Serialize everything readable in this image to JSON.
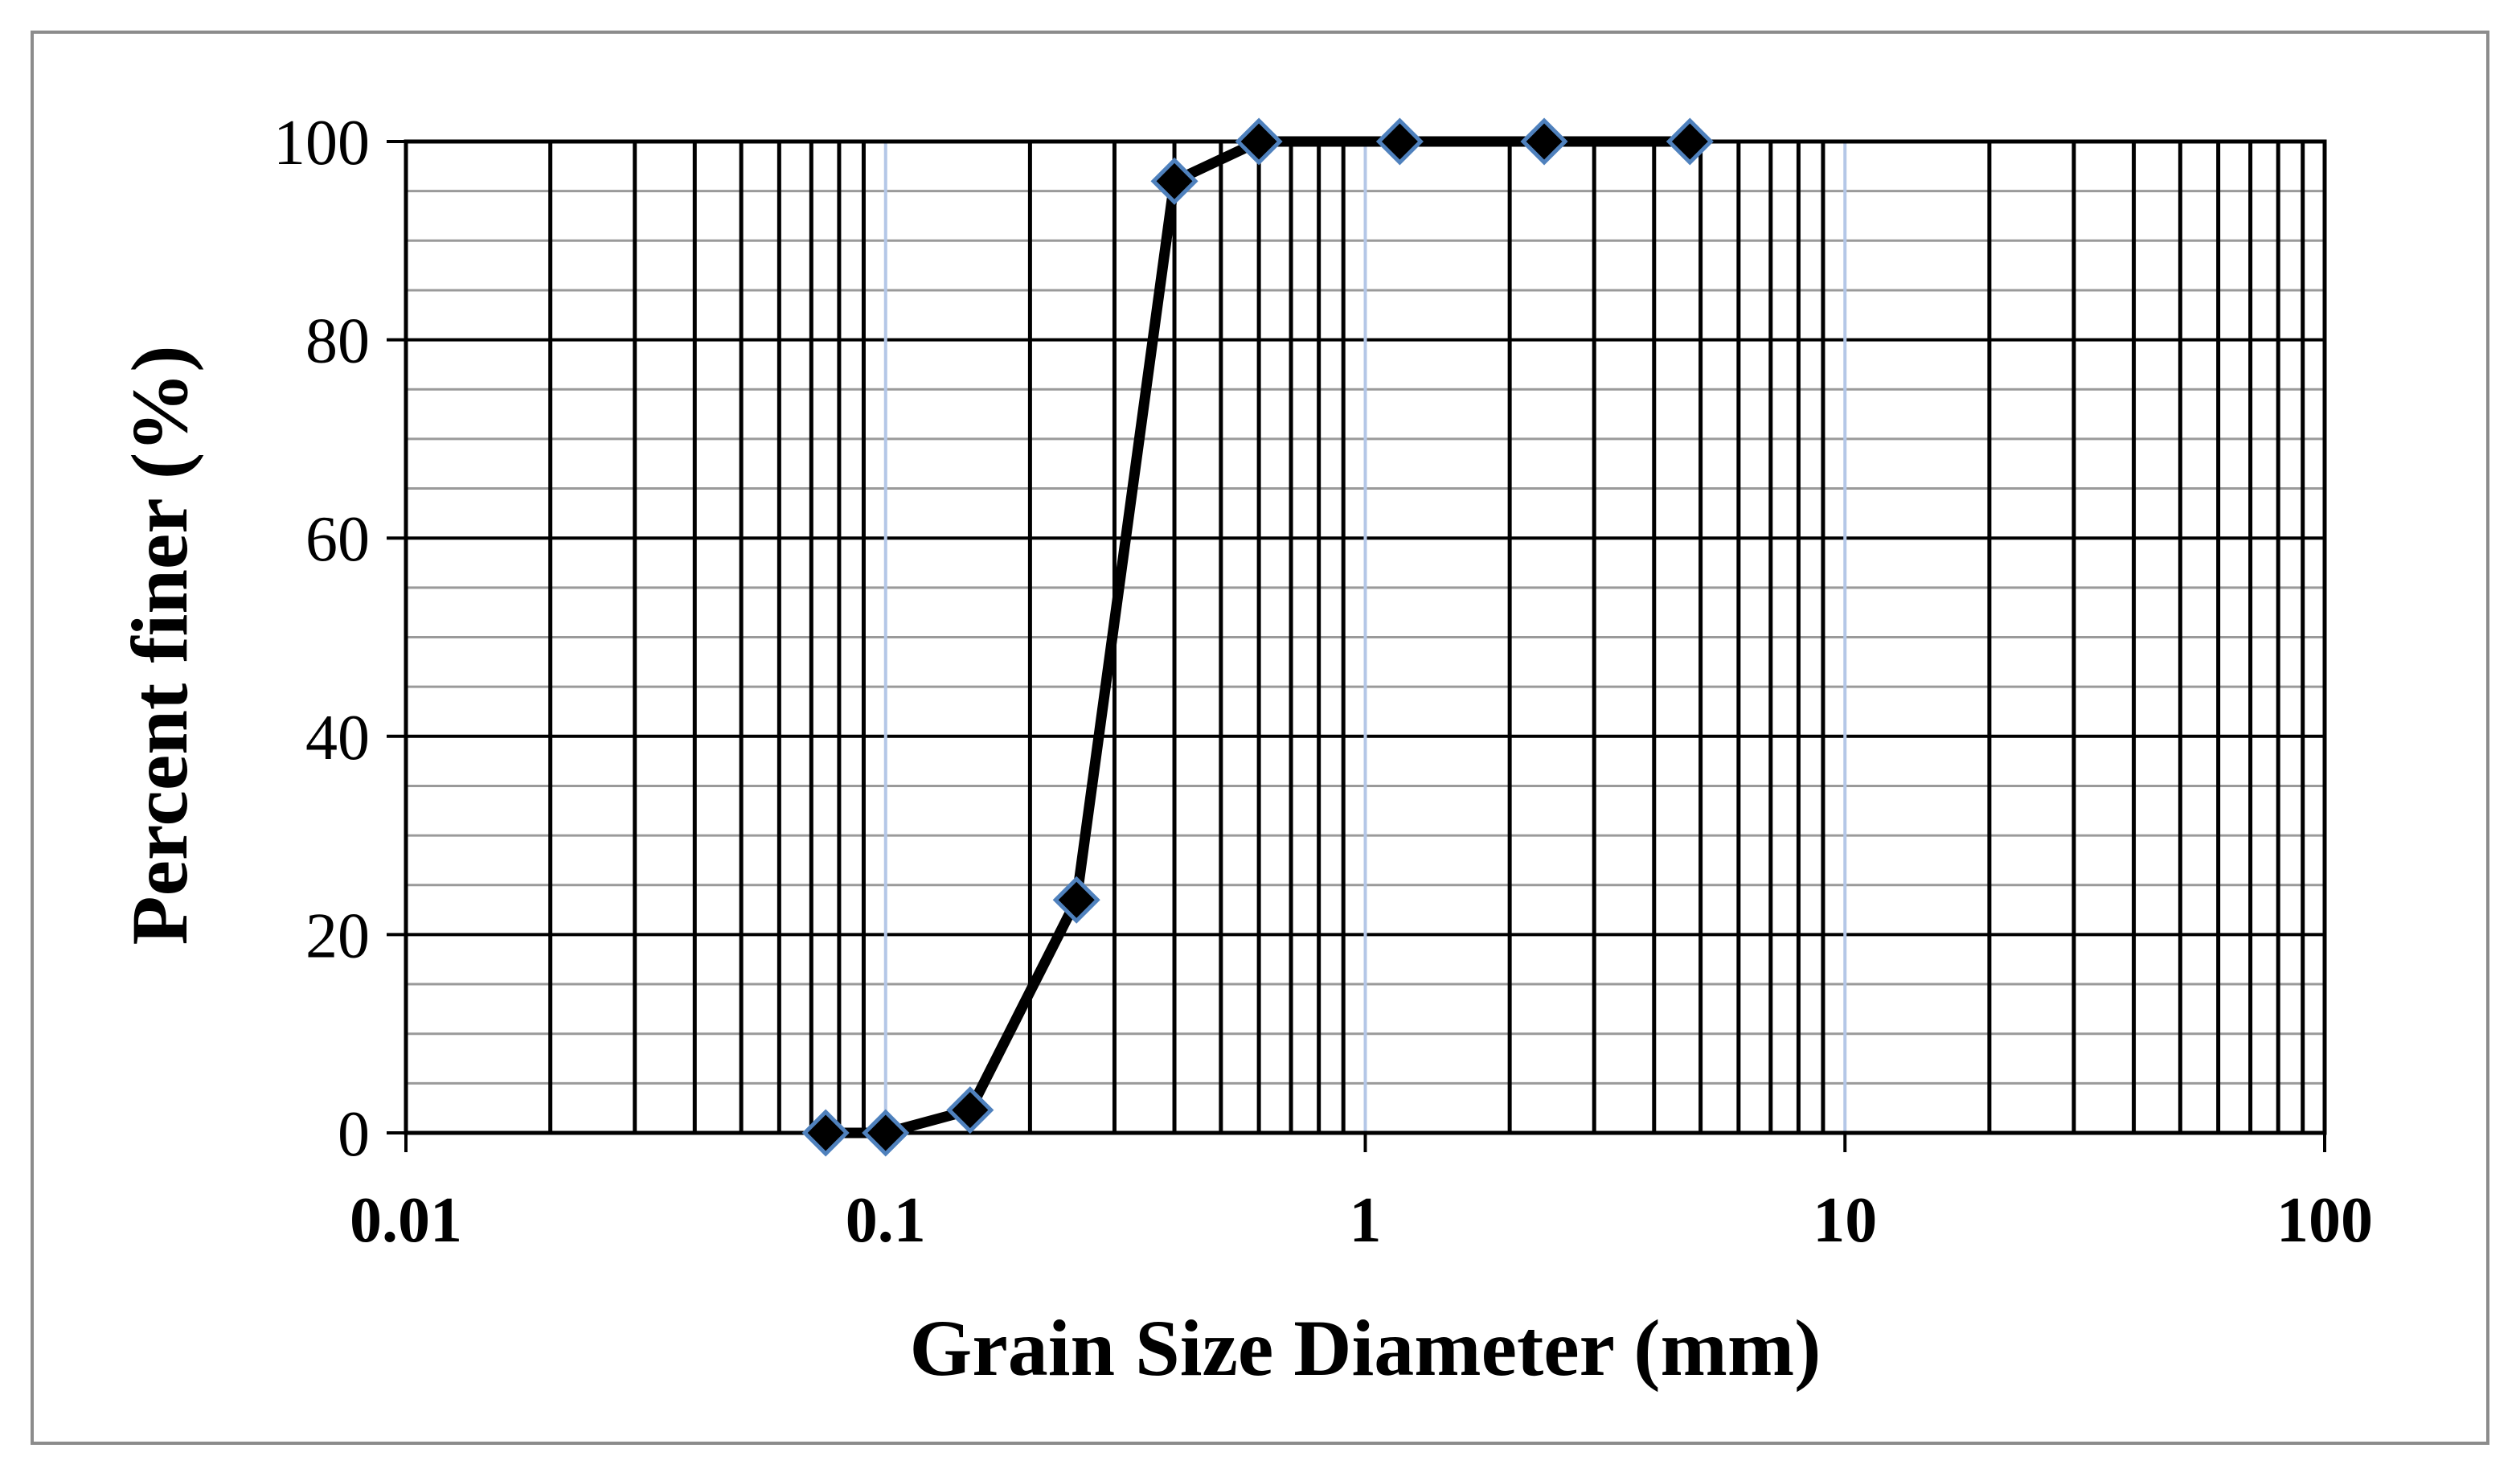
{
  "chart_data": {
    "type": "scatter",
    "mode": "lines+markers",
    "title": "",
    "xlabel": "Grain Size Diameter (mm)",
    "ylabel": "Percent finer (%)",
    "xscale": "log",
    "xlim": [
      0.01,
      100
    ],
    "ylim": [
      0,
      100
    ],
    "x_ticks": [
      "0.01",
      "0.1",
      "1",
      "10",
      "100"
    ],
    "y_ticks": [
      "0",
      "20",
      "40",
      "60",
      "80",
      "100"
    ],
    "grid": true,
    "legend": "none",
    "series": [
      {
        "x": [
          0.075,
          0.1,
          0.15,
          0.25,
          0.4,
          0.6,
          1.18,
          2.36,
          4.75
        ],
        "y": [
          0,
          0,
          2.3,
          23.5,
          96,
          100,
          100,
          100,
          100
        ],
        "line_color": "#000000",
        "marker": "diamond",
        "marker_color": "#000000",
        "marker_edge_color": "#4f81bd"
      }
    ]
  },
  "colors": {
    "frame": "#8c8c8c",
    "major_gridline": "#000000",
    "minor_gridline": "#9a9a9a",
    "decade_gridline": "#b4c7e7"
  }
}
